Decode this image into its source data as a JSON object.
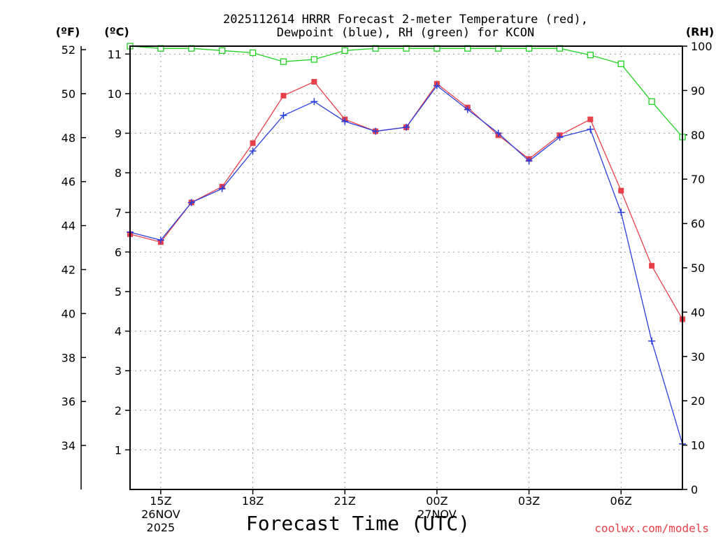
{
  "chart_data": {
    "type": "line",
    "title": "2025112614 HRRR Forecast 2-meter Temperature (red),",
    "subtitle": "Dewpoint (blue), RH (green) for KCON",
    "xlabel": "Forecast Time (UTC)",
    "credit": "coolwx.com/models",
    "left_outer_unit": "(ºF)",
    "left_inner_unit": "(ºC)",
    "right_unit": "(RH)",
    "x": [
      14,
      15,
      16,
      17,
      18,
      19,
      20,
      21,
      22,
      23,
      24,
      25,
      26,
      27,
      28,
      29,
      30,
      31,
      32
    ],
    "xlim": [
      14,
      32
    ],
    "x_ticks": [
      {
        "x": 15,
        "label": "15Z",
        "line2": "26NOV",
        "line3": "2025"
      },
      {
        "x": 18,
        "label": "18Z",
        "line2": "",
        "line3": ""
      },
      {
        "x": 21,
        "label": "21Z",
        "line2": "",
        "line3": ""
      },
      {
        "x": 24,
        "label": "00Z",
        "line2": "27NOV",
        "line3": ""
      },
      {
        "x": 27,
        "label": "03Z",
        "line2": "",
        "line3": ""
      },
      {
        "x": 30,
        "label": "06Z",
        "line2": "",
        "line3": ""
      }
    ],
    "ylim_c": [
      0,
      11.2
    ],
    "y_ticks_c": [
      1,
      2,
      3,
      4,
      5,
      6,
      7,
      8,
      9,
      10,
      11
    ],
    "y_ticks_f": [
      34,
      36,
      38,
      40,
      42,
      44,
      46,
      48,
      50,
      52
    ],
    "y_ticks_rh": [
      0,
      10,
      20,
      30,
      40,
      50,
      60,
      70,
      80,
      90,
      100
    ],
    "series": [
      {
        "name": "Temperature (red)",
        "axis": "c",
        "color": "#e8404a",
        "marker": "filled-square",
        "values": [
          6.45,
          6.25,
          7.25,
          7.65,
          8.75,
          9.95,
          10.3,
          9.35,
          9.05,
          9.15,
          10.25,
          9.65,
          8.95,
          8.35,
          8.95,
          9.35,
          7.55,
          5.65,
          4.3
        ]
      },
      {
        "name": "Dewpoint (blue)",
        "axis": "c",
        "color": "#2a3ee0",
        "marker": "plus",
        "values": [
          6.5,
          6.3,
          7.25,
          7.6,
          8.55,
          9.45,
          9.8,
          9.3,
          9.05,
          9.15,
          10.2,
          9.6,
          9.0,
          8.3,
          8.9,
          9.1,
          7.0,
          3.75,
          1.15
        ]
      },
      {
        "name": "RH (green)",
        "axis": "rh",
        "color": "#20d020",
        "marker": "open-square",
        "values": [
          100,
          99.5,
          99.5,
          99,
          98.5,
          96.5,
          97,
          99,
          99.5,
          99.5,
          99.5,
          99.5,
          99.5,
          99.5,
          99.5,
          98,
          96,
          87.5,
          79.5
        ]
      }
    ]
  }
}
